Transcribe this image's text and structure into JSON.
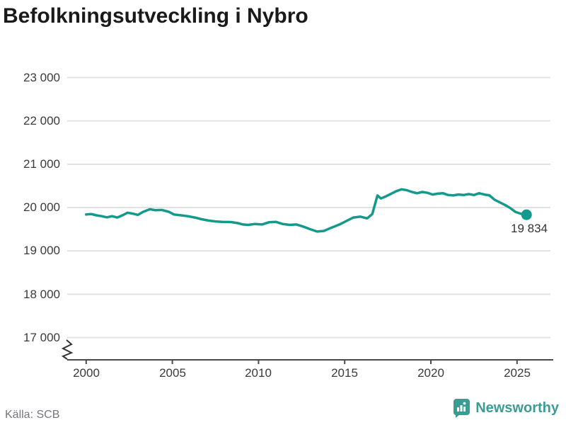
{
  "title": "Befolkningsutveckling i Nybro",
  "source": "Källa: SCB",
  "brand": {
    "name": "Newsworthy",
    "color": "#3b9c94"
  },
  "colors": {
    "line": "#149a8c",
    "grid": "#e2e2e2",
    "axis": "#4a4a4a",
    "text": "#3a3a3a",
    "title": "#1a1a1a",
    "source_text": "#75757d"
  },
  "chart_data": {
    "type": "line",
    "title": "Befolkningsutveckling i Nybro",
    "xlabel": "",
    "ylabel": "",
    "grid": "horizontal",
    "legend": "none",
    "axis_break_bottom": true,
    "xlim": [
      1998.9,
      2027.0
    ],
    "ylim": [
      17000,
      23000
    ],
    "xticks": [
      2000,
      2005,
      2010,
      2015,
      2020,
      2025
    ],
    "xtick_labels": [
      "2000",
      "2005",
      "2010",
      "2015",
      "2020",
      "2025"
    ],
    "yticks": [
      23000,
      22000,
      21000,
      20000,
      19000,
      18000,
      17000
    ],
    "ytick_labels": [
      "23 000",
      "22 000",
      "21 000",
      "20 000",
      "19 000",
      "18 000",
      "17 000"
    ],
    "series_name": "Befolkning i Nybro",
    "x": [
      2000.0,
      2000.3,
      2000.6,
      2000.9,
      2001.2,
      2001.5,
      2001.8,
      2002.1,
      2002.4,
      2002.7,
      2003.0,
      2003.3,
      2003.7,
      2004.0,
      2004.4,
      2004.8,
      2005.1,
      2005.5,
      2005.9,
      2006.3,
      2006.7,
      2007.1,
      2007.5,
      2007.9,
      2008.4,
      2008.8,
      2009.1,
      2009.4,
      2009.8,
      2010.2,
      2010.6,
      2011.0,
      2011.4,
      2011.8,
      2012.2,
      2012.6,
      2013.0,
      2013.4,
      2013.8,
      2014.2,
      2014.7,
      2015.1,
      2015.5,
      2015.9,
      2016.3,
      2016.6,
      2016.9,
      2017.1,
      2017.4,
      2017.7,
      2018.0,
      2018.3,
      2018.6,
      2018.9,
      2019.2,
      2019.5,
      2019.8,
      2020.1,
      2020.4,
      2020.7,
      2021.0,
      2021.3,
      2021.6,
      2021.9,
      2022.2,
      2022.5,
      2022.8,
      2023.1,
      2023.4,
      2023.7,
      2024.0,
      2024.3,
      2024.6,
      2024.9,
      2025.2,
      2025.55
    ],
    "y": [
      19840,
      19850,
      19820,
      19800,
      19775,
      19800,
      19770,
      19820,
      19880,
      19860,
      19830,
      19900,
      19960,
      19940,
      19945,
      19900,
      19840,
      19820,
      19800,
      19770,
      19730,
      19700,
      19680,
      19670,
      19665,
      19640,
      19610,
      19600,
      19620,
      19610,
      19660,
      19670,
      19620,
      19600,
      19610,
      19560,
      19500,
      19445,
      19460,
      19530,
      19610,
      19690,
      19770,
      19790,
      19750,
      19850,
      20280,
      20210,
      20260,
      20320,
      20380,
      20420,
      20400,
      20360,
      20330,
      20360,
      20340,
      20300,
      20320,
      20330,
      20290,
      20280,
      20300,
      20290,
      20310,
      20290,
      20330,
      20300,
      20280,
      20180,
      20120,
      20060,
      19990,
      19900,
      19860,
      19834
    ],
    "end_value": 19834,
    "end_label": "19 834"
  }
}
